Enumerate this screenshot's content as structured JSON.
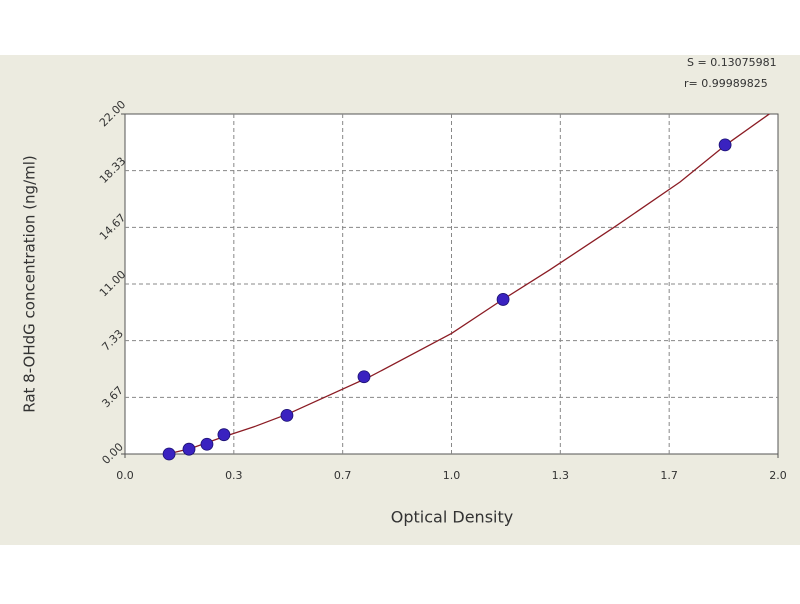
{
  "chart_data": {
    "type": "scatter",
    "annotations": [
      "S = 0.13075981",
      "r= 0.99989825"
    ],
    "x_label": "Optical Density",
    "y_label": "Rat 8-OHdG concentration (ng/ml)",
    "x": [
      0.135,
      0.196,
      0.251,
      0.303,
      0.496,
      0.732,
      1.158,
      1.838
    ],
    "values": [
      0,
      0.31,
      0.63,
      1.25,
      2.5,
      5,
      10,
      20
    ],
    "color": "#3a22c0",
    "curve": {
      "color": "#8b1c24",
      "x": [
        0.13,
        0.2,
        0.3,
        0.4,
        0.5,
        0.75,
        1.0,
        1.15,
        1.3,
        1.5,
        1.7,
        1.84,
        2.0
      ],
      "values": [
        0,
        0.35,
        1.1,
        1.8,
        2.6,
        5.0,
        7.8,
        9.9,
        11.9,
        14.7,
        17.6,
        20.0,
        22.4
      ]
    },
    "xlim": [
      0,
      2
    ],
    "ylim": [
      0,
      22
    ],
    "xticks": [
      {
        "value": 0,
        "label": "0.0"
      },
      {
        "value": 0.3333,
        "label": "0.3"
      },
      {
        "value": 0.6667,
        "label": "0.7"
      },
      {
        "value": 1,
        "label": "1.0"
      },
      {
        "value": 1.3333,
        "label": "1.3"
      },
      {
        "value": 1.6667,
        "label": "1.7"
      },
      {
        "value": 2,
        "label": "2.0"
      }
    ],
    "yticks": [
      {
        "value": 0,
        "label": "0.00"
      },
      {
        "value": 3.6667,
        "label": "3.67"
      },
      {
        "value": 7.3333,
        "label": "7.33"
      },
      {
        "value": 11,
        "label": "11.00"
      },
      {
        "value": 14.6667,
        "label": "14.67"
      },
      {
        "value": 18.3333,
        "label": "18.33"
      },
      {
        "value": 22,
        "label": "22.00"
      }
    ],
    "grid": true
  }
}
